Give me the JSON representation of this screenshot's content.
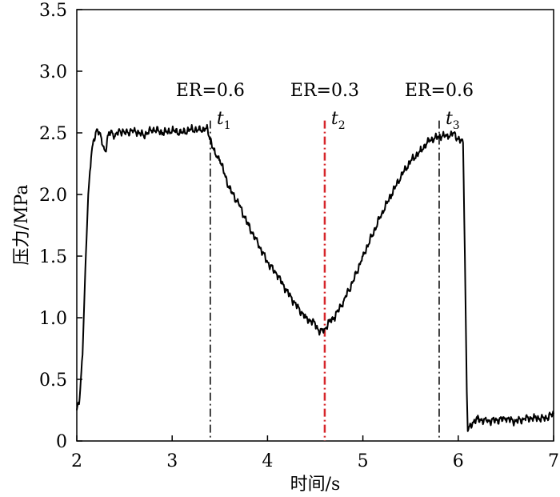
{
  "chart_data": {
    "type": "line",
    "xlabel": "时间/s",
    "ylabel": "压力/MPa",
    "xlim": [
      2,
      7
    ],
    "ylim": [
      0,
      3.5
    ],
    "xticks": [
      "2",
      "3",
      "4",
      "5",
      "6",
      "7"
    ],
    "yticks": [
      "0",
      "0.5",
      "1.0",
      "1.5",
      "2.0",
      "2.5",
      "3.0",
      "3.5"
    ],
    "grid": false,
    "series": [
      {
        "color": "#000000",
        "x": [
          2.0,
          2.03,
          2.06,
          2.09,
          2.12,
          2.15,
          2.18,
          2.21,
          2.24,
          2.27,
          2.3,
          2.33,
          2.36,
          2.4,
          2.45,
          2.5,
          2.6,
          2.7,
          2.8,
          2.9,
          3.0,
          3.1,
          3.2,
          3.3,
          3.36,
          3.4,
          3.45,
          3.5,
          3.6,
          3.7,
          3.8,
          3.9,
          4.0,
          4.1,
          4.2,
          4.3,
          4.4,
          4.5,
          4.55,
          4.6,
          4.65,
          4.7,
          4.8,
          4.9,
          5.0,
          5.1,
          5.2,
          5.3,
          5.4,
          5.5,
          5.6,
          5.7,
          5.8,
          5.85,
          5.9,
          5.95,
          6.0,
          6.05,
          6.07,
          6.09,
          6.1,
          6.15,
          6.2,
          6.3,
          6.4,
          6.5,
          6.6,
          6.7,
          6.8,
          6.9,
          7.0
        ],
        "y": [
          0.25,
          0.35,
          0.7,
          1.4,
          2.0,
          2.3,
          2.45,
          2.53,
          2.5,
          2.4,
          2.35,
          2.48,
          2.52,
          2.47,
          2.52,
          2.5,
          2.52,
          2.48,
          2.53,
          2.5,
          2.52,
          2.5,
          2.53,
          2.52,
          2.54,
          2.45,
          2.33,
          2.28,
          2.05,
          1.92,
          1.75,
          1.6,
          1.45,
          1.35,
          1.22,
          1.1,
          1.0,
          0.95,
          0.88,
          0.91,
          0.97,
          1.0,
          1.14,
          1.3,
          1.5,
          1.67,
          1.85,
          2.0,
          2.15,
          2.27,
          2.35,
          2.44,
          2.47,
          2.48,
          2.47,
          2.5,
          2.45,
          2.42,
          1.5,
          0.4,
          0.08,
          0.15,
          0.18,
          0.16,
          0.17,
          0.18,
          0.16,
          0.18,
          0.19,
          0.18,
          0.22
        ]
      }
    ],
    "vlines": [
      {
        "x": 3.4,
        "color": "#000000",
        "top_value": 2.6,
        "top_label": "ER=0.6",
        "t_label": "t",
        "t_sub": "1"
      },
      {
        "x": 4.6,
        "color": "#d6262b",
        "top_value": 2.6,
        "top_label": "ER=0.3",
        "t_label": "t",
        "t_sub": "2"
      },
      {
        "x": 5.8,
        "color": "#000000",
        "top_value": 2.6,
        "top_label": "ER=0.6",
        "t_label": "t",
        "t_sub": "3"
      }
    ]
  }
}
